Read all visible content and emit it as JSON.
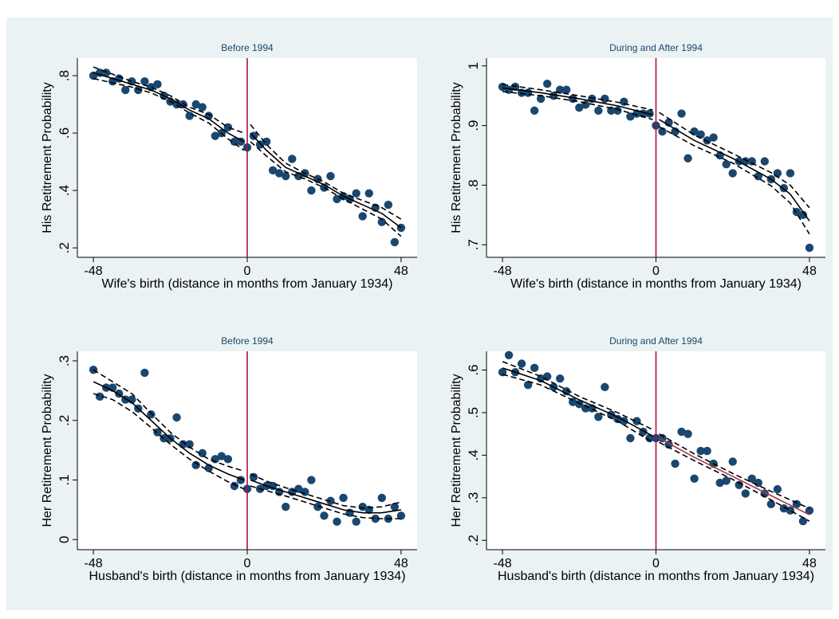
{
  "chart_data": [
    {
      "type": "scatter",
      "title": "Before 1994",
      "xlabel": "Wife's birth (distance in months from January 1934)",
      "ylabel": "His Retitrement Probability",
      "xlim": [
        -53,
        53
      ],
      "ylim": [
        0.167,
        0.861
      ],
      "xticks": [
        -48,
        0,
        48
      ],
      "yticks": [
        {
          "value": 0.2,
          "label": ".2"
        },
        {
          "value": 0.4,
          "label": ".4"
        },
        {
          "value": 0.6,
          "label": ".6"
        },
        {
          "value": 0.8,
          "label": ".8"
        }
      ],
      "vline": 0,
      "vline_color": "#a5123e",
      "point_color": "#1a476f",
      "points": {
        "x": [
          -48,
          -46,
          -44,
          -42,
          -40,
          -38,
          -36,
          -34,
          -32,
          -30,
          -28,
          -26,
          -24,
          -22,
          -20,
          -18,
          -16,
          -14,
          -12,
          -10,
          -8,
          -6,
          -4,
          -2,
          0,
          2,
          4,
          6,
          8,
          10,
          12,
          14,
          16,
          18,
          20,
          22,
          24,
          26,
          28,
          30,
          32,
          34,
          36,
          38,
          40,
          42,
          44,
          46,
          48
        ],
        "values": [
          0.8,
          0.81,
          0.81,
          0.78,
          0.79,
          0.75,
          0.78,
          0.75,
          0.78,
          0.76,
          0.77,
          0.73,
          0.71,
          0.7,
          0.7,
          0.66,
          0.7,
          0.69,
          0.66,
          0.59,
          0.6,
          0.62,
          0.57,
          0.57,
          0.55,
          0.59,
          0.56,
          0.57,
          0.47,
          0.46,
          0.45,
          0.51,
          0.45,
          0.46,
          0.4,
          0.44,
          0.41,
          0.45,
          0.37,
          0.38,
          0.37,
          0.39,
          0.31,
          0.39,
          0.34,
          0.29,
          0.35,
          0.22,
          0.27
        ]
      },
      "fits": [
        {
          "color": "#000000",
          "x": [
            -48,
            -42,
            -36,
            -30,
            -24,
            -18,
            -12,
            -6,
            -1
          ],
          "values": [
            0.81,
            0.79,
            0.77,
            0.75,
            0.72,
            0.68,
            0.65,
            0.6,
            0.57
          ],
          "lower": [
            0.79,
            0.775,
            0.76,
            0.74,
            0.71,
            0.67,
            0.635,
            0.58,
            0.54
          ],
          "upper": [
            0.83,
            0.805,
            0.78,
            0.76,
            0.73,
            0.69,
            0.665,
            0.62,
            0.6
          ]
        },
        {
          "color": "#000000",
          "x": [
            1,
            6,
            12,
            18,
            24,
            30,
            36,
            42,
            48
          ],
          "values": [
            0.6,
            0.54,
            0.48,
            0.45,
            0.42,
            0.38,
            0.35,
            0.32,
            0.27
          ],
          "lower": [
            0.57,
            0.52,
            0.465,
            0.44,
            0.41,
            0.37,
            0.335,
            0.3,
            0.24
          ],
          "upper": [
            0.63,
            0.56,
            0.495,
            0.46,
            0.43,
            0.39,
            0.365,
            0.34,
            0.3
          ]
        }
      ]
    },
    {
      "type": "scatter",
      "title": "During and After 1994",
      "xlabel": "Wife's birth (distance in months from January 1934)",
      "ylabel": "His Retitrement Probability",
      "xlim": [
        -53,
        53
      ],
      "ylim": [
        0.679,
        1.013
      ],
      "xticks": [
        -48,
        0,
        48
      ],
      "yticks": [
        {
          "value": 0.7,
          "label": ".7"
        },
        {
          "value": 0.8,
          "label": ".8"
        },
        {
          "value": 0.9,
          "label": ".9"
        },
        1
      ],
      "vline": 0,
      "vline_color": "#a5123e",
      "point_color": "#1a476f",
      "points": {
        "x": [
          -48,
          -46,
          -44,
          -42,
          -40,
          -38,
          -36,
          -34,
          -32,
          -30,
          -28,
          -26,
          -24,
          -22,
          -20,
          -18,
          -16,
          -14,
          -12,
          -10,
          -8,
          -6,
          -4,
          -2,
          0,
          2,
          4,
          6,
          8,
          10,
          12,
          14,
          16,
          18,
          20,
          22,
          24,
          26,
          28,
          30,
          32,
          34,
          36,
          38,
          40,
          42,
          44,
          46,
          48
        ],
        "values": [
          0.965,
          0.96,
          0.965,
          0.955,
          0.955,
          0.925,
          0.945,
          0.97,
          0.95,
          0.96,
          0.96,
          0.945,
          0.93,
          0.935,
          0.945,
          0.925,
          0.945,
          0.925,
          0.925,
          0.94,
          0.915,
          0.92,
          0.92,
          0.92,
          0.9,
          0.89,
          0.905,
          0.89,
          0.92,
          0.845,
          0.89,
          0.885,
          0.875,
          0.88,
          0.85,
          0.835,
          0.82,
          0.84,
          0.84,
          0.84,
          0.815,
          0.84,
          0.81,
          0.82,
          0.795,
          0.82,
          0.755,
          0.75,
          0.695
        ]
      },
      "fits": [
        {
          "color": "#000000",
          "x": [
            -48,
            -36,
            -24,
            -12,
            -1
          ],
          "values": [
            0.963,
            0.955,
            0.945,
            0.933,
            0.918
          ],
          "lower": [
            0.957,
            0.95,
            0.94,
            0.927,
            0.91
          ],
          "upper": [
            0.969,
            0.96,
            0.95,
            0.939,
            0.926
          ]
        },
        {
          "color": "#000000",
          "x": [
            1,
            12,
            24,
            36,
            42,
            48
          ],
          "values": [
            0.91,
            0.875,
            0.845,
            0.81,
            0.785,
            0.74
          ],
          "lower": [
            0.898,
            0.866,
            0.837,
            0.799,
            0.77,
            0.718
          ],
          "upper": [
            0.922,
            0.884,
            0.853,
            0.821,
            0.8,
            0.762
          ]
        }
      ]
    },
    {
      "type": "scatter",
      "title": "Before 1994",
      "xlabel": "Husband's birth (distance in months from January 1934)",
      "ylabel": "Her Retitrement Probability",
      "xlim": [
        -53,
        53
      ],
      "ylim": [
        -0.017,
        0.316
      ],
      "xticks": [
        -48,
        0,
        48
      ],
      "yticks": [
        0,
        {
          "value": 0.1,
          "label": ".1"
        },
        {
          "value": 0.2,
          "label": ".2"
        },
        {
          "value": 0.3,
          "label": ".3"
        }
      ],
      "vline": 0,
      "vline_color": "#a5123e",
      "point_color": "#1a476f",
      "points": {
        "x": [
          -48,
          -46,
          -44,
          -42,
          -40,
          -38,
          -36,
          -34,
          -32,
          -30,
          -28,
          -26,
          -24,
          -22,
          -20,
          -18,
          -16,
          -14,
          -12,
          -10,
          -8,
          -6,
          -4,
          -2,
          0,
          2,
          4,
          6,
          8,
          10,
          12,
          14,
          16,
          18,
          20,
          22,
          24,
          26,
          28,
          30,
          32,
          34,
          36,
          38,
          40,
          42,
          44,
          46,
          48
        ],
        "values": [
          0.285,
          0.24,
          0.255,
          0.255,
          0.245,
          0.235,
          0.235,
          0.22,
          0.28,
          0.21,
          0.18,
          0.17,
          0.17,
          0.205,
          0.16,
          0.16,
          0.125,
          0.145,
          0.12,
          0.135,
          0.14,
          0.135,
          0.09,
          0.1,
          0.085,
          0.105,
          0.085,
          0.09,
          0.09,
          0.08,
          0.055,
          0.08,
          0.085,
          0.08,
          0.1,
          0.055,
          0.04,
          0.065,
          0.03,
          0.07,
          0.045,
          0.03,
          0.055,
          0.05,
          0.035,
          0.07,
          0.035,
          0.055,
          0.04
        ]
      },
      "fits": [
        {
          "color": "#000000",
          "x": [
            -48,
            -42,
            -36,
            -30,
            -24,
            -18,
            -12,
            -6,
            -1
          ],
          "values": [
            0.265,
            0.25,
            0.23,
            0.2,
            0.17,
            0.145,
            0.125,
            0.11,
            0.1
          ],
          "lower": [
            0.245,
            0.235,
            0.215,
            0.188,
            0.16,
            0.135,
            0.115,
            0.097,
            0.085
          ],
          "upper": [
            0.285,
            0.265,
            0.245,
            0.212,
            0.18,
            0.155,
            0.135,
            0.123,
            0.115
          ]
        },
        {
          "color": "#000000",
          "x": [
            1,
            6,
            12,
            18,
            24,
            30,
            36,
            42,
            48
          ],
          "values": [
            0.1,
            0.09,
            0.08,
            0.07,
            0.06,
            0.05,
            0.045,
            0.045,
            0.05
          ],
          "lower": [
            0.09,
            0.082,
            0.073,
            0.063,
            0.053,
            0.043,
            0.037,
            0.035,
            0.035
          ],
          "upper": [
            0.11,
            0.098,
            0.087,
            0.077,
            0.067,
            0.057,
            0.053,
            0.055,
            0.063
          ]
        }
      ]
    },
    {
      "type": "scatter",
      "title": "During and After 1994",
      "xlabel": "Husband's birth (distance in months from January 1934)",
      "ylabel": "Her Retitrement Probability",
      "xlim": [
        -53,
        53
      ],
      "ylim": [
        0.178,
        0.644
      ],
      "xticks": [
        -48,
        0,
        48
      ],
      "yticks": [
        {
          "value": 0.2,
          "label": ".2"
        },
        {
          "value": 0.3,
          "label": ".3"
        },
        {
          "value": 0.4,
          "label": ".4"
        },
        {
          "value": 0.5,
          "label": ".5"
        },
        {
          "value": 0.6,
          "label": ".6"
        }
      ],
      "vline": 0,
      "vline_color": "#a5123e",
      "point_color": "#1a476f",
      "points": {
        "x": [
          -48,
          -46,
          -44,
          -42,
          -40,
          -38,
          -36,
          -34,
          -32,
          -30,
          -28,
          -26,
          -24,
          -22,
          -20,
          -18,
          -16,
          -14,
          -12,
          -10,
          -8,
          -6,
          -4,
          -2,
          0,
          2,
          4,
          6,
          8,
          10,
          12,
          14,
          16,
          18,
          20,
          22,
          24,
          26,
          28,
          30,
          32,
          34,
          36,
          38,
          40,
          42,
          44,
          46,
          48
        ],
        "values": [
          0.595,
          0.635,
          0.595,
          0.615,
          0.565,
          0.605,
          0.58,
          0.585,
          0.56,
          0.58,
          0.55,
          0.525,
          0.52,
          0.51,
          0.51,
          0.49,
          0.56,
          0.495,
          0.485,
          0.48,
          0.44,
          0.48,
          0.455,
          0.44,
          0.44,
          0.44,
          0.425,
          0.38,
          0.455,
          0.45,
          0.345,
          0.41,
          0.41,
          0.38,
          0.335,
          0.34,
          0.385,
          0.33,
          0.31,
          0.345,
          0.335,
          0.31,
          0.285,
          0.32,
          0.275,
          0.27,
          0.285,
          0.245,
          0.27
        ]
      },
      "fits": [
        {
          "color": "#000000",
          "x": [
            -48,
            -36,
            -24,
            -12,
            -1
          ],
          "values": [
            0.605,
            0.575,
            0.53,
            0.49,
            0.445
          ],
          "lower": [
            0.59,
            0.565,
            0.522,
            0.48,
            0.43
          ],
          "upper": [
            0.62,
            0.585,
            0.538,
            0.5,
            0.46
          ]
        },
        {
          "color": "#b2344a",
          "x": [
            1,
            12,
            24,
            36,
            48
          ],
          "values": [
            0.44,
            0.395,
            0.35,
            0.305,
            0.26
          ],
          "lower": [
            0.43,
            0.387,
            0.343,
            0.295,
            0.245
          ],
          "upper": [
            0.45,
            0.403,
            0.357,
            0.315,
            0.275
          ]
        }
      ]
    }
  ]
}
